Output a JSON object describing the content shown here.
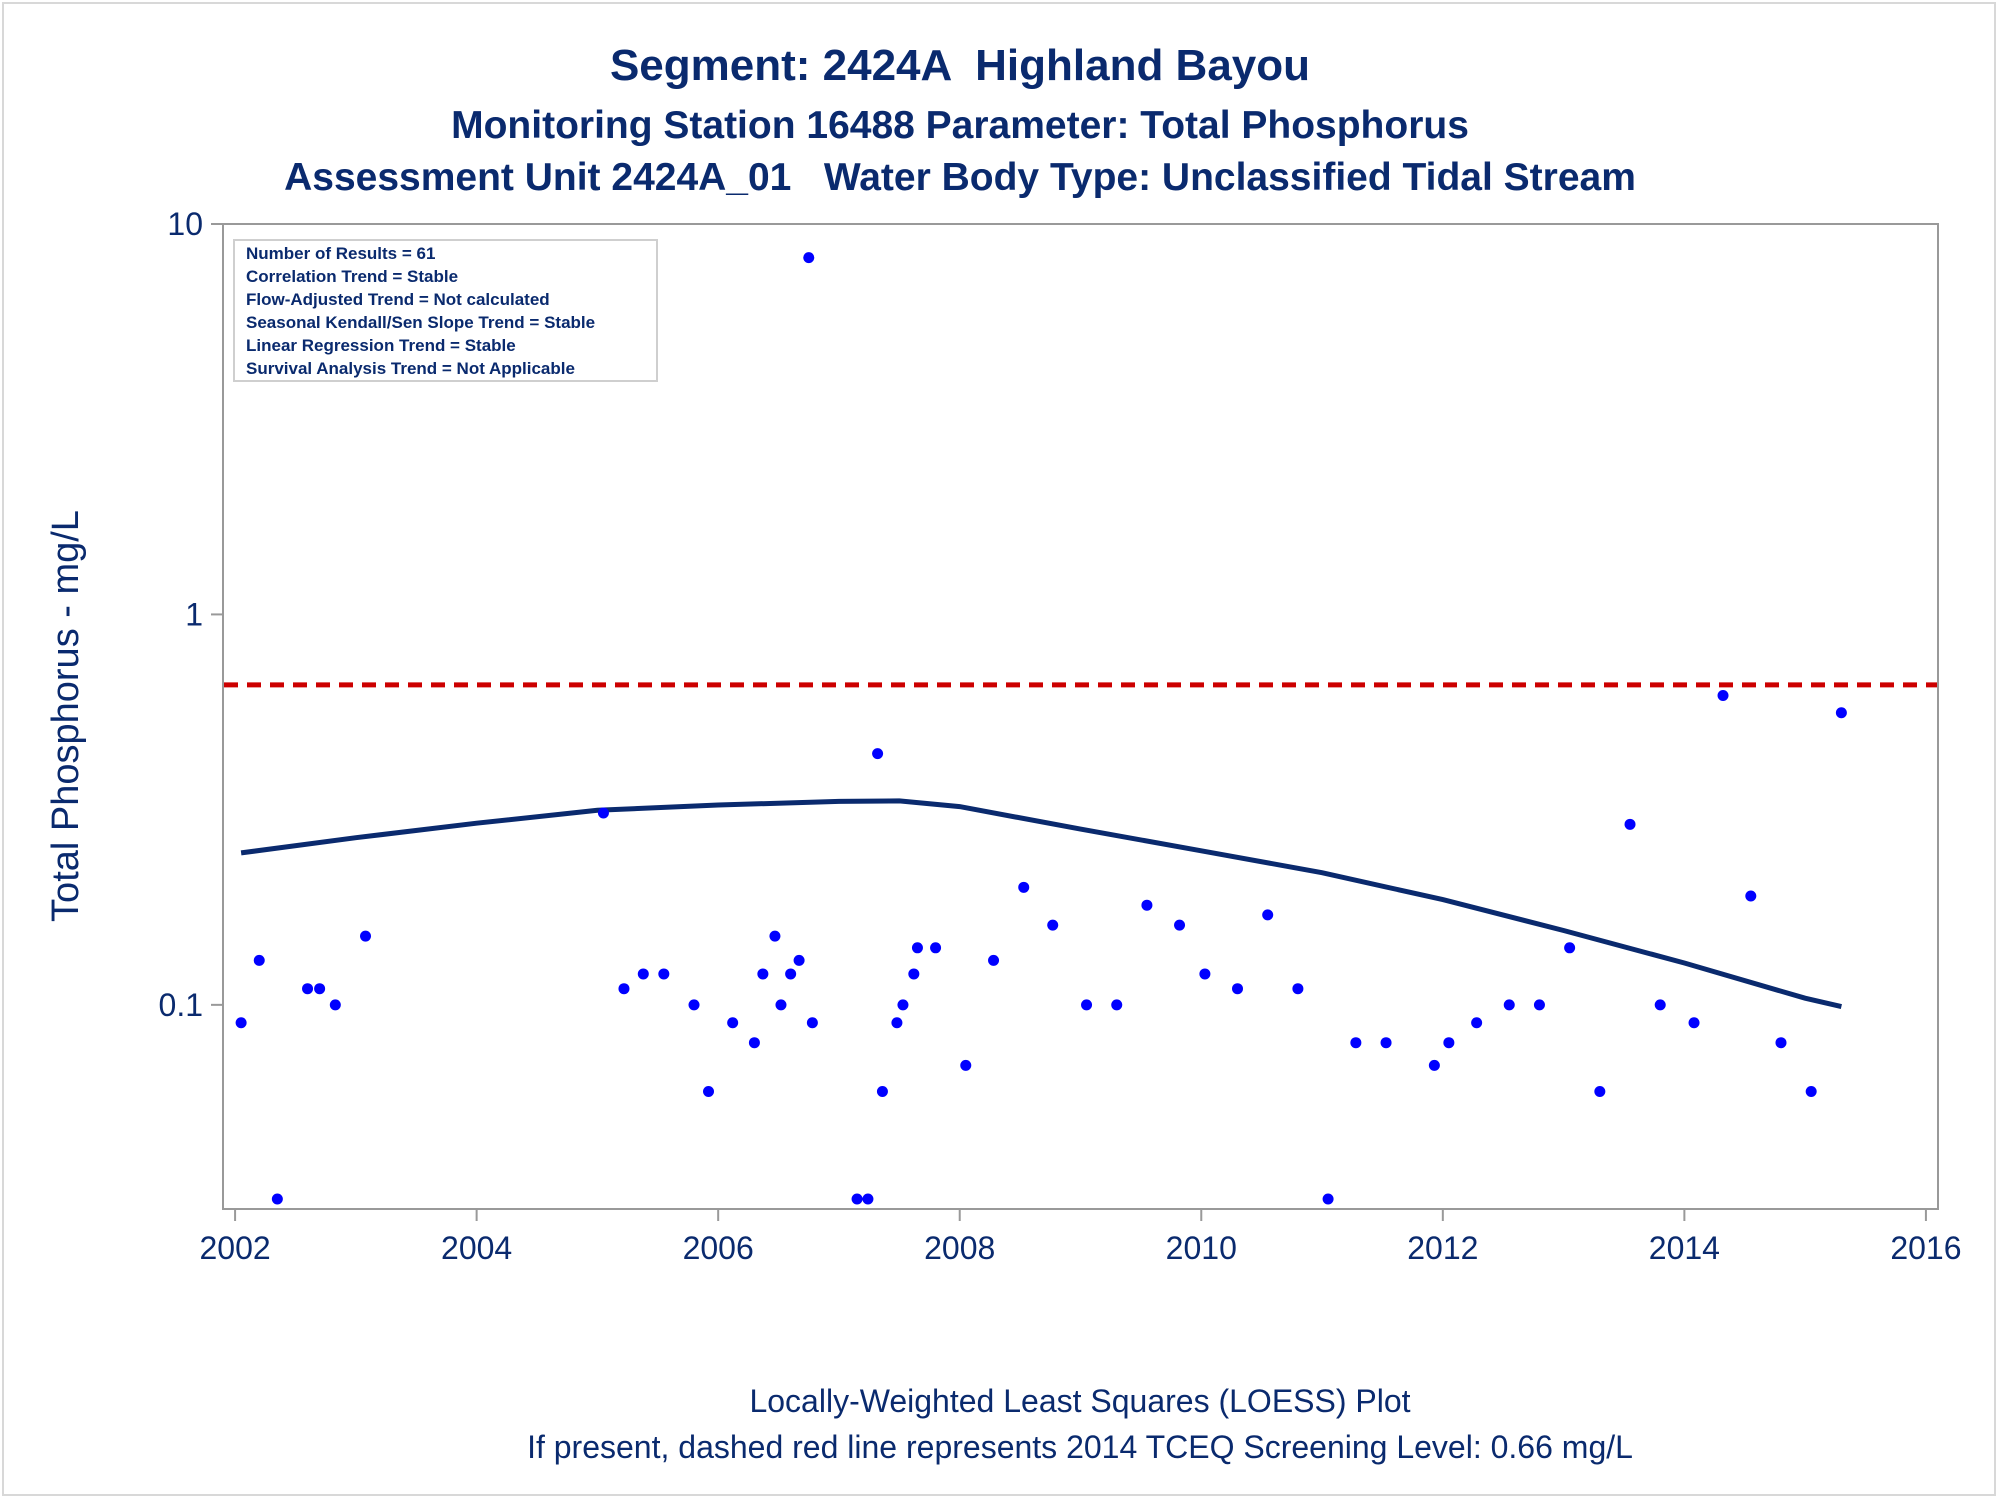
{
  "chart_data": {
    "type": "scatter",
    "title": "Segment: 2424A  Highland Bayou",
    "subtitle": "Monitoring Station 16488 Parameter: Total Phosphorus",
    "subtitle2": "Assessment Unit 2424A_01   Water Body Type: Unclassified Tidal Stream",
    "ylabel": "Total Phosphorus - mg/L",
    "xlabel": "",
    "yscale": "log",
    "ylim": [
      0.03,
      10
    ],
    "xlim": [
      2001.9,
      2016.1
    ],
    "xticks": [
      "2002",
      "2004",
      "2006",
      "2008",
      "2010",
      "2012",
      "2014",
      "2016"
    ],
    "yticks": [
      "0.1",
      "1",
      "10"
    ],
    "grid": false,
    "stats_box": [
      "Number of Results = 61",
      "Correlation Trend = Stable",
      "Flow-Adjusted Trend = Not calculated",
      "Seasonal Kendall/Sen Slope Trend = Stable",
      "Linear Regression Trend = Stable",
      "Survival Analysis Trend = Not Applicable"
    ],
    "screening_level": 0.66,
    "footnote1": "Locally-Weighted Least Squares (LOESS) Plot",
    "footnote2": "If present, dashed red line represents 2014 TCEQ Screening Level: 0.66 mg/L",
    "colors": {
      "points": "#0000ff",
      "loess": "#0a2a6e",
      "screening": "#cc0000",
      "text": "#0a2a6e"
    },
    "points": [
      [
        2002.05,
        0.09
      ],
      [
        2002.2,
        0.13
      ],
      [
        2002.35,
        0.03
      ],
      [
        2002.6,
        0.11
      ],
      [
        2002.7,
        0.11
      ],
      [
        2002.83,
        0.1
      ],
      [
        2003.08,
        0.15
      ],
      [
        2005.05,
        0.31
      ],
      [
        2005.22,
        0.11
      ],
      [
        2005.38,
        0.12
      ],
      [
        2005.55,
        0.12
      ],
      [
        2005.8,
        0.1
      ],
      [
        2005.92,
        0.06
      ],
      [
        2006.12,
        0.09
      ],
      [
        2006.3,
        0.08
      ],
      [
        2006.37,
        0.12
      ],
      [
        2006.47,
        0.15
      ],
      [
        2006.52,
        0.1
      ],
      [
        2006.6,
        0.12
      ],
      [
        2006.67,
        0.13
      ],
      [
        2006.75,
        8.2
      ],
      [
        2006.78,
        0.09
      ],
      [
        2007.15,
        0.03
      ],
      [
        2007.24,
        0.03
      ],
      [
        2007.32,
        0.44
      ],
      [
        2007.36,
        0.06
      ],
      [
        2007.48,
        0.09
      ],
      [
        2007.53,
        0.1
      ],
      [
        2007.62,
        0.12
      ],
      [
        2007.65,
        0.14
      ],
      [
        2007.8,
        0.14
      ],
      [
        2008.05,
        0.07
      ],
      [
        2008.28,
        0.13
      ],
      [
        2008.53,
        0.2
      ],
      [
        2008.77,
        0.16
      ],
      [
        2009.05,
        0.1
      ],
      [
        2009.3,
        0.1
      ],
      [
        2009.55,
        0.18
      ],
      [
        2009.82,
        0.16
      ],
      [
        2010.03,
        0.12
      ],
      [
        2010.3,
        0.11
      ],
      [
        2010.55,
        0.17
      ],
      [
        2010.8,
        0.11
      ],
      [
        2011.05,
        0.03
      ],
      [
        2011.28,
        0.08
      ],
      [
        2011.53,
        0.08
      ],
      [
        2011.93,
        0.07
      ],
      [
        2012.05,
        0.08
      ],
      [
        2012.28,
        0.09
      ],
      [
        2012.55,
        0.1
      ],
      [
        2012.8,
        0.1
      ],
      [
        2013.05,
        0.14
      ],
      [
        2013.3,
        0.06
      ],
      [
        2013.55,
        0.29
      ],
      [
        2013.8,
        0.1
      ],
      [
        2014.08,
        0.09
      ],
      [
        2014.32,
        0.62
      ],
      [
        2014.55,
        0.19
      ],
      [
        2014.8,
        0.08
      ],
      [
        2015.05,
        0.06
      ],
      [
        2015.3,
        0.56
      ]
    ],
    "loess": [
      [
        2002.05,
        0.245
      ],
      [
        2003.0,
        0.268
      ],
      [
        2004.0,
        0.292
      ],
      [
        2005.0,
        0.315
      ],
      [
        2006.0,
        0.325
      ],
      [
        2007.0,
        0.332
      ],
      [
        2007.5,
        0.333
      ],
      [
        2008.0,
        0.322
      ],
      [
        2009.0,
        0.282
      ],
      [
        2010.0,
        0.248
      ],
      [
        2011.0,
        0.218
      ],
      [
        2012.0,
        0.186
      ],
      [
        2013.0,
        0.155
      ],
      [
        2014.0,
        0.128
      ],
      [
        2015.0,
        0.104
      ],
      [
        2015.3,
        0.099
      ]
    ]
  }
}
